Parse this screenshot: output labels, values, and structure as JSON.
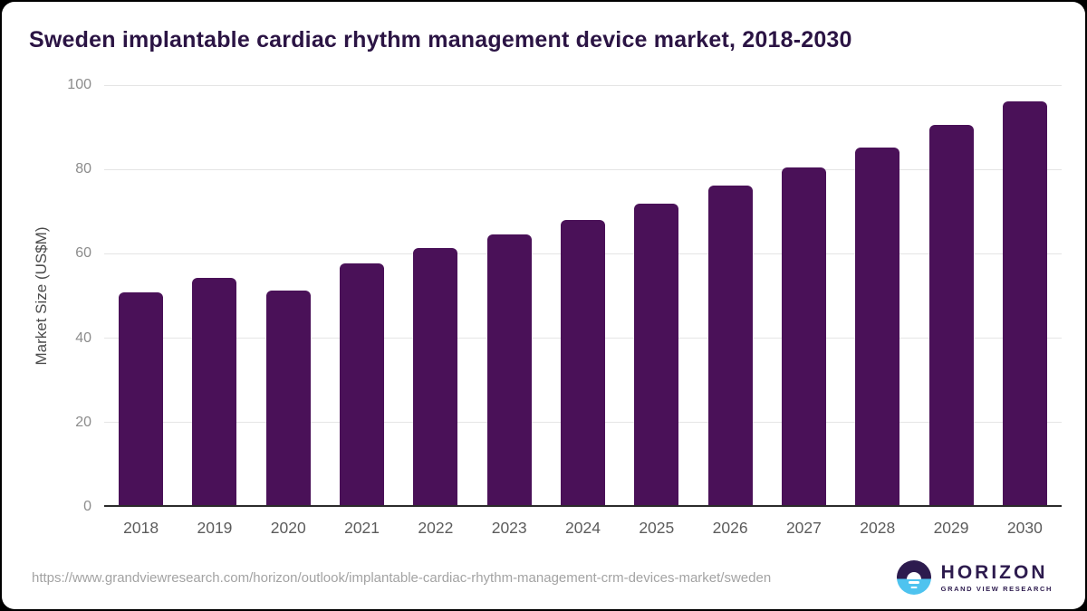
{
  "page": {
    "title": "Sweden implantable cardiac rhythm management device market, 2018-2030",
    "source_url": "https://www.grandviewresearch.com/horizon/outlook/implantable-cardiac-rhythm-management-crm-devices-market/sweden"
  },
  "logo": {
    "name": "HORIZON",
    "subtitle": "GRAND VIEW RESEARCH"
  },
  "colors": {
    "bar": "#4a1158",
    "title_text": "#2b1444",
    "gridline": "#e5e5e5",
    "axis_line": "#2b2b2b",
    "y_tick_text": "#8c8c8c",
    "x_tick_text": "#5c5c5c",
    "axis_title_text": "#4c4c4c",
    "url_text": "#a3a3a3",
    "logo_purple": "#2d1b4e",
    "logo_blue": "#4ec3ef",
    "card_background": "#ffffff",
    "page_background": "#000000"
  },
  "chart_data": {
    "type": "bar",
    "title": "Sweden implantable cardiac rhythm management device market, 2018-2030",
    "categories": [
      "2018",
      "2019",
      "2020",
      "2021",
      "2022",
      "2023",
      "2024",
      "2025",
      "2026",
      "2027",
      "2028",
      "2029",
      "2030"
    ],
    "values": [
      50.7,
      54.1,
      51.1,
      57.5,
      61.1,
      64.4,
      67.8,
      71.7,
      75.9,
      80.3,
      85.0,
      90.4,
      95.9
    ],
    "xlabel": "",
    "ylabel": "Market Size (US$M)",
    "ylim": [
      0,
      100
    ],
    "yticks": [
      0,
      20,
      40,
      60,
      80,
      100
    ],
    "grid": true,
    "legend": false,
    "bar_color": "#4a1158"
  }
}
